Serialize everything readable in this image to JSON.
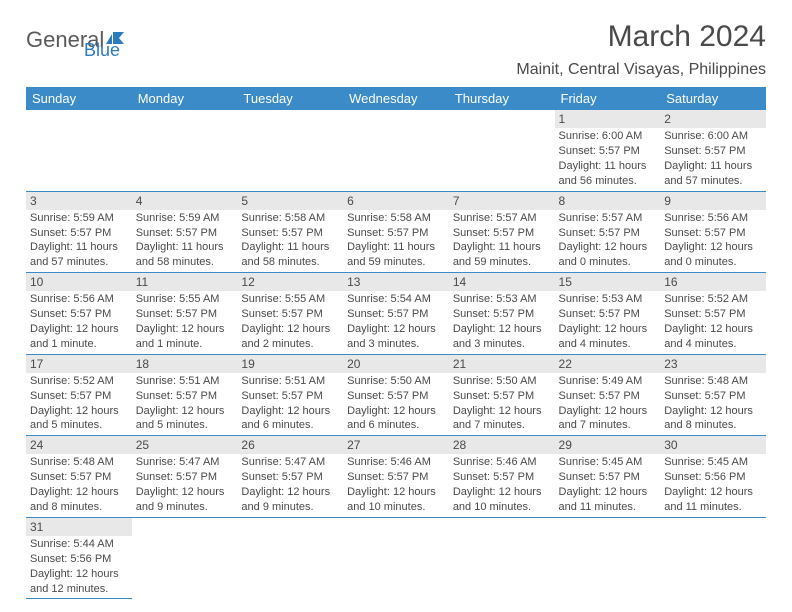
{
  "logo": {
    "general": "General",
    "blue": "Blue"
  },
  "title": "March 2024",
  "location": "Mainit, Central Visayas, Philippines",
  "day_headers": [
    "Sunday",
    "Monday",
    "Tuesday",
    "Wednesday",
    "Thursday",
    "Friday",
    "Saturday"
  ],
  "colors": {
    "header_bg": "#3b8bc8",
    "header_text": "#ffffff",
    "daynum_bg": "#e8e8e8",
    "cell_border": "#3b8bc8",
    "body_text": "#4a4a4a",
    "logo_blue": "#2b7bbf"
  },
  "weeks": [
    [
      null,
      null,
      null,
      null,
      null,
      {
        "n": "1",
        "sr": "Sunrise: 6:00 AM",
        "ss": "Sunset: 5:57 PM",
        "d1": "Daylight: 11 hours",
        "d2": "and 56 minutes."
      },
      {
        "n": "2",
        "sr": "Sunrise: 6:00 AM",
        "ss": "Sunset: 5:57 PM",
        "d1": "Daylight: 11 hours",
        "d2": "and 57 minutes."
      }
    ],
    [
      {
        "n": "3",
        "sr": "Sunrise: 5:59 AM",
        "ss": "Sunset: 5:57 PM",
        "d1": "Daylight: 11 hours",
        "d2": "and 57 minutes."
      },
      {
        "n": "4",
        "sr": "Sunrise: 5:59 AM",
        "ss": "Sunset: 5:57 PM",
        "d1": "Daylight: 11 hours",
        "d2": "and 58 minutes."
      },
      {
        "n": "5",
        "sr": "Sunrise: 5:58 AM",
        "ss": "Sunset: 5:57 PM",
        "d1": "Daylight: 11 hours",
        "d2": "and 58 minutes."
      },
      {
        "n": "6",
        "sr": "Sunrise: 5:58 AM",
        "ss": "Sunset: 5:57 PM",
        "d1": "Daylight: 11 hours",
        "d2": "and 59 minutes."
      },
      {
        "n": "7",
        "sr": "Sunrise: 5:57 AM",
        "ss": "Sunset: 5:57 PM",
        "d1": "Daylight: 11 hours",
        "d2": "and 59 minutes."
      },
      {
        "n": "8",
        "sr": "Sunrise: 5:57 AM",
        "ss": "Sunset: 5:57 PM",
        "d1": "Daylight: 12 hours",
        "d2": "and 0 minutes."
      },
      {
        "n": "9",
        "sr": "Sunrise: 5:56 AM",
        "ss": "Sunset: 5:57 PM",
        "d1": "Daylight: 12 hours",
        "d2": "and 0 minutes."
      }
    ],
    [
      {
        "n": "10",
        "sr": "Sunrise: 5:56 AM",
        "ss": "Sunset: 5:57 PM",
        "d1": "Daylight: 12 hours",
        "d2": "and 1 minute."
      },
      {
        "n": "11",
        "sr": "Sunrise: 5:55 AM",
        "ss": "Sunset: 5:57 PM",
        "d1": "Daylight: 12 hours",
        "d2": "and 1 minute."
      },
      {
        "n": "12",
        "sr": "Sunrise: 5:55 AM",
        "ss": "Sunset: 5:57 PM",
        "d1": "Daylight: 12 hours",
        "d2": "and 2 minutes."
      },
      {
        "n": "13",
        "sr": "Sunrise: 5:54 AM",
        "ss": "Sunset: 5:57 PM",
        "d1": "Daylight: 12 hours",
        "d2": "and 3 minutes."
      },
      {
        "n": "14",
        "sr": "Sunrise: 5:53 AM",
        "ss": "Sunset: 5:57 PM",
        "d1": "Daylight: 12 hours",
        "d2": "and 3 minutes."
      },
      {
        "n": "15",
        "sr": "Sunrise: 5:53 AM",
        "ss": "Sunset: 5:57 PM",
        "d1": "Daylight: 12 hours",
        "d2": "and 4 minutes."
      },
      {
        "n": "16",
        "sr": "Sunrise: 5:52 AM",
        "ss": "Sunset: 5:57 PM",
        "d1": "Daylight: 12 hours",
        "d2": "and 4 minutes."
      }
    ],
    [
      {
        "n": "17",
        "sr": "Sunrise: 5:52 AM",
        "ss": "Sunset: 5:57 PM",
        "d1": "Daylight: 12 hours",
        "d2": "and 5 minutes."
      },
      {
        "n": "18",
        "sr": "Sunrise: 5:51 AM",
        "ss": "Sunset: 5:57 PM",
        "d1": "Daylight: 12 hours",
        "d2": "and 5 minutes."
      },
      {
        "n": "19",
        "sr": "Sunrise: 5:51 AM",
        "ss": "Sunset: 5:57 PM",
        "d1": "Daylight: 12 hours",
        "d2": "and 6 minutes."
      },
      {
        "n": "20",
        "sr": "Sunrise: 5:50 AM",
        "ss": "Sunset: 5:57 PM",
        "d1": "Daylight: 12 hours",
        "d2": "and 6 minutes."
      },
      {
        "n": "21",
        "sr": "Sunrise: 5:50 AM",
        "ss": "Sunset: 5:57 PM",
        "d1": "Daylight: 12 hours",
        "d2": "and 7 minutes."
      },
      {
        "n": "22",
        "sr": "Sunrise: 5:49 AM",
        "ss": "Sunset: 5:57 PM",
        "d1": "Daylight: 12 hours",
        "d2": "and 7 minutes."
      },
      {
        "n": "23",
        "sr": "Sunrise: 5:48 AM",
        "ss": "Sunset: 5:57 PM",
        "d1": "Daylight: 12 hours",
        "d2": "and 8 minutes."
      }
    ],
    [
      {
        "n": "24",
        "sr": "Sunrise: 5:48 AM",
        "ss": "Sunset: 5:57 PM",
        "d1": "Daylight: 12 hours",
        "d2": "and 8 minutes."
      },
      {
        "n": "25",
        "sr": "Sunrise: 5:47 AM",
        "ss": "Sunset: 5:57 PM",
        "d1": "Daylight: 12 hours",
        "d2": "and 9 minutes."
      },
      {
        "n": "26",
        "sr": "Sunrise: 5:47 AM",
        "ss": "Sunset: 5:57 PM",
        "d1": "Daylight: 12 hours",
        "d2": "and 9 minutes."
      },
      {
        "n": "27",
        "sr": "Sunrise: 5:46 AM",
        "ss": "Sunset: 5:57 PM",
        "d1": "Daylight: 12 hours",
        "d2": "and 10 minutes."
      },
      {
        "n": "28",
        "sr": "Sunrise: 5:46 AM",
        "ss": "Sunset: 5:57 PM",
        "d1": "Daylight: 12 hours",
        "d2": "and 10 minutes."
      },
      {
        "n": "29",
        "sr": "Sunrise: 5:45 AM",
        "ss": "Sunset: 5:57 PM",
        "d1": "Daylight: 12 hours",
        "d2": "and 11 minutes."
      },
      {
        "n": "30",
        "sr": "Sunrise: 5:45 AM",
        "ss": "Sunset: 5:56 PM",
        "d1": "Daylight: 12 hours",
        "d2": "and 11 minutes."
      }
    ],
    [
      {
        "n": "31",
        "sr": "Sunrise: 5:44 AM",
        "ss": "Sunset: 5:56 PM",
        "d1": "Daylight: 12 hours",
        "d2": "and 12 minutes."
      },
      null,
      null,
      null,
      null,
      null,
      null
    ]
  ]
}
